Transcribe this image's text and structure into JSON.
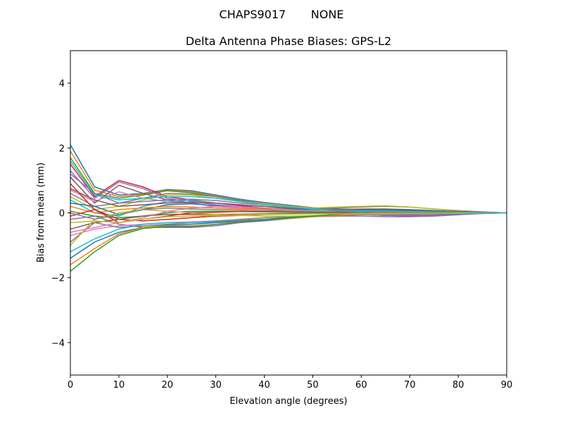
{
  "chart_data": {
    "type": "line",
    "suptitle": "CHAPS9017       NONE",
    "title": "Delta Antenna Phase Biases: GPS-L2",
    "xlabel": "Elevation angle (degrees)",
    "ylabel": "Bias from mean (mm)",
    "xlim": [
      0,
      90
    ],
    "ylim": [
      -5,
      5
    ],
    "xticks": [
      0,
      10,
      20,
      30,
      40,
      50,
      60,
      70,
      80,
      90
    ],
    "yticks": [
      -4,
      -2,
      0,
      2,
      4
    ],
    "ytick_labels": [
      "−4",
      "−2",
      "0",
      "2",
      "4"
    ],
    "grid": false,
    "colors": [
      "#1f77b4",
      "#ff7f0e",
      "#2ca02c",
      "#d62728",
      "#9467bd",
      "#8c564b",
      "#e377c2",
      "#7f7f7f",
      "#bcbd22",
      "#17becf"
    ],
    "x": [
      0,
      5,
      10,
      15,
      20,
      25,
      30,
      35,
      40,
      45,
      50,
      55,
      60,
      65,
      70,
      75,
      80,
      85,
      90
    ],
    "series": [
      {
        "values": [
          2.1,
          0.8,
          0.55,
          0.6,
          0.72,
          0.68,
          0.55,
          0.42,
          0.32,
          0.24,
          0.16,
          0.12,
          0.1,
          0.1,
          0.08,
          0.06,
          0.04,
          0.02,
          0
        ]
      },
      {
        "values": [
          1.9,
          0.7,
          0.5,
          0.58,
          0.7,
          0.65,
          0.52,
          0.4,
          0.3,
          0.22,
          0.15,
          0.1,
          0.08,
          0.08,
          0.07,
          0.05,
          0.03,
          0.01,
          0
        ]
      },
      {
        "values": [
          1.7,
          0.6,
          0.45,
          0.55,
          0.68,
          0.62,
          0.5,
          0.38,
          0.28,
          0.2,
          0.14,
          0.1,
          0.08,
          0.07,
          0.06,
          0.05,
          0.03,
          0.01,
          0
        ]
      },
      {
        "values": [
          1.5,
          0.5,
          1.0,
          0.8,
          0.5,
          0.4,
          0.3,
          0.22,
          0.15,
          0.1,
          0.05,
          0.0,
          -0.05,
          -0.08,
          -0.1,
          -0.08,
          -0.05,
          -0.02,
          0
        ]
      },
      {
        "values": [
          1.3,
          0.45,
          0.95,
          0.75,
          0.45,
          0.35,
          0.25,
          0.18,
          0.12,
          0.08,
          0.03,
          -0.02,
          -0.05,
          -0.08,
          -0.08,
          -0.07,
          -0.04,
          -0.02,
          0
        ]
      },
      {
        "values": [
          1.1,
          0.3,
          0.85,
          0.6,
          0.4,
          0.3,
          0.2,
          0.15,
          0.1,
          0.05,
          0.02,
          0.0,
          -0.03,
          -0.05,
          -0.05,
          -0.04,
          -0.03,
          -0.01,
          0
        ]
      },
      {
        "values": [
          0.7,
          0.35,
          0.65,
          0.45,
          0.35,
          0.3,
          0.2,
          0.15,
          0.1,
          0.08,
          0.05,
          0.03,
          0.02,
          0.02,
          0.02,
          0.01,
          0.01,
          0.0,
          0
        ]
      },
      {
        "values": [
          0.6,
          0.2,
          0.3,
          0.45,
          0.6,
          0.58,
          0.5,
          0.4,
          0.3,
          0.22,
          0.15,
          0.15,
          0.18,
          0.2,
          0.18,
          0.12,
          0.07,
          0.03,
          0
        ]
      },
      {
        "values": [
          0.5,
          0.1,
          0.2,
          0.4,
          0.55,
          0.55,
          0.45,
          0.35,
          0.28,
          0.2,
          0.15,
          0.18,
          0.2,
          0.22,
          0.18,
          0.12,
          0.06,
          0.02,
          0
        ]
      },
      {
        "values": [
          0.4,
          0.0,
          -0.1,
          0.2,
          0.35,
          0.38,
          0.3,
          0.25,
          0.2,
          0.15,
          0.1,
          0.08,
          0.06,
          0.05,
          0.04,
          0.03,
          0.02,
          0.01,
          0
        ]
      },
      {
        "values": [
          0.3,
          0.2,
          -0.05,
          0.1,
          0.25,
          0.28,
          0.22,
          0.18,
          0.15,
          0.12,
          0.1,
          0.1,
          0.12,
          0.12,
          0.1,
          0.07,
          0.04,
          0.02,
          0
        ]
      },
      {
        "values": [
          0.2,
          0.0,
          0.1,
          0.15,
          0.2,
          0.18,
          0.15,
          0.12,
          0.1,
          0.08,
          0.06,
          0.05,
          0.04,
          0.03,
          0.02,
          0.02,
          0.01,
          0.0,
          0
        ]
      },
      {
        "values": [
          0.05,
          -0.1,
          -0.15,
          -0.1,
          0.0,
          0.05,
          0.05,
          0.04,
          0.03,
          0.02,
          0.02,
          0.02,
          0.02,
          0.02,
          0.01,
          0.01,
          0.0,
          0.0,
          0
        ]
      },
      {
        "values": [
          -0.1,
          0.1,
          -0.2,
          -0.25,
          -0.2,
          -0.15,
          -0.1,
          -0.08,
          -0.05,
          -0.03,
          -0.02,
          -0.01,
          0.0,
          0.0,
          0.0,
          0.0,
          0.0,
          0.0,
          0
        ]
      },
      {
        "values": [
          -0.2,
          -0.1,
          -0.35,
          -0.45,
          -0.45,
          -0.45,
          -0.4,
          -0.3,
          -0.25,
          -0.18,
          -0.12,
          -0.1,
          -0.1,
          -0.12,
          -0.12,
          -0.1,
          -0.06,
          -0.02,
          0
        ]
      },
      {
        "values": [
          -0.5,
          -0.3,
          -0.2,
          -0.1,
          -0.05,
          -0.05,
          -0.05,
          -0.04,
          -0.03,
          -0.02,
          -0.01,
          0.0,
          0.0,
          0.0,
          0.0,
          0.0,
          0.0,
          0.0,
          0
        ]
      },
      {
        "values": [
          -0.7,
          -0.5,
          -0.4,
          -0.35,
          -0.3,
          -0.28,
          -0.25,
          -0.22,
          -0.2,
          -0.15,
          -0.1,
          -0.08,
          -0.06,
          -0.05,
          -0.04,
          -0.03,
          -0.02,
          -0.01,
          0
        ]
      },
      {
        "values": [
          -0.9,
          -0.3,
          -0.45,
          -0.4,
          -0.35,
          -0.3,
          -0.25,
          -0.2,
          -0.15,
          -0.12,
          -0.1,
          -0.08,
          -0.06,
          -0.05,
          -0.04,
          -0.03,
          -0.02,
          -0.01,
          0
        ]
      },
      {
        "values": [
          -1.0,
          -0.2,
          0.0,
          0.1,
          0.05,
          0.0,
          -0.05,
          -0.08,
          -0.1,
          -0.1,
          -0.08,
          -0.06,
          -0.04,
          -0.03,
          -0.02,
          -0.02,
          -0.01,
          0.0,
          0
        ]
      },
      {
        "values": [
          -1.2,
          -0.8,
          -0.5,
          -0.35,
          -0.3,
          -0.3,
          -0.28,
          -0.25,
          -0.2,
          -0.15,
          -0.1,
          -0.06,
          -0.04,
          -0.03,
          -0.02,
          -0.02,
          -0.01,
          0.0,
          0
        ]
      },
      {
        "values": [
          -1.4,
          -0.9,
          -0.6,
          -0.45,
          -0.38,
          -0.35,
          -0.3,
          -0.25,
          -0.2,
          -0.15,
          -0.1,
          -0.05,
          -0.02,
          0.0,
          0.01,
          0.01,
          0.01,
          0.0,
          0
        ]
      },
      {
        "values": [
          -1.6,
          -1.1,
          -0.65,
          -0.45,
          -0.4,
          -0.4,
          -0.35,
          -0.27,
          -0.22,
          -0.17,
          -0.12,
          -0.07,
          -0.03,
          0.0,
          0.02,
          0.02,
          0.01,
          0.0,
          0
        ]
      },
      {
        "values": [
          -1.8,
          -1.2,
          -0.7,
          -0.48,
          -0.42,
          -0.42,
          -0.36,
          -0.28,
          -0.22,
          -0.16,
          -0.1,
          -0.05,
          0.0,
          0.03,
          0.04,
          0.03,
          0.02,
          0.01,
          0
        ]
      },
      {
        "values": [
          0.9,
          0.1,
          -0.3,
          -0.2,
          -0.1,
          0.0,
          0.02,
          0.04,
          0.05,
          0.05,
          0.05,
          0.05,
          0.04,
          0.04,
          0.03,
          0.02,
          0.01,
          0.0,
          0
        ]
      },
      {
        "values": [
          1.2,
          0.6,
          0.3,
          0.35,
          0.4,
          0.42,
          0.38,
          0.3,
          0.25,
          0.18,
          0.12,
          0.1,
          0.08,
          0.06,
          0.05,
          0.04,
          0.02,
          0.01,
          0
        ]
      },
      {
        "values": [
          0.75,
          0.4,
          0.2,
          0.25,
          0.3,
          0.32,
          0.3,
          0.25,
          0.2,
          0.15,
          0.12,
          0.1,
          0.1,
          0.1,
          0.08,
          0.06,
          0.04,
          0.02,
          0
        ]
      },
      {
        "values": [
          -0.6,
          -0.45,
          -0.3,
          -0.15,
          0.05,
          0.15,
          0.2,
          0.18,
          0.15,
          0.1,
          0.06,
          0.03,
          0.02,
          0.02,
          0.01,
          0.01,
          0.0,
          0.0,
          0
        ]
      },
      {
        "values": [
          0.0,
          -0.2,
          -0.05,
          0.1,
          0.15,
          0.12,
          0.1,
          0.08,
          0.06,
          0.05,
          0.04,
          0.03,
          0.03,
          0.02,
          0.02,
          0.01,
          0.01,
          0.0,
          0
        ]
      },
      {
        "values": [
          -0.3,
          -0.25,
          -0.3,
          -0.2,
          -0.12,
          -0.1,
          -0.08,
          -0.06,
          -0.05,
          -0.04,
          -0.03,
          -0.03,
          -0.03,
          -0.03,
          -0.02,
          -0.02,
          -0.01,
          0.0,
          0
        ]
      },
      {
        "values": [
          1.6,
          0.55,
          0.4,
          0.45,
          0.5,
          0.5,
          0.45,
          0.35,
          0.25,
          0.18,
          0.12,
          0.08,
          0.06,
          0.05,
          0.04,
          0.03,
          0.02,
          0.01,
          0
        ]
      }
    ]
  }
}
